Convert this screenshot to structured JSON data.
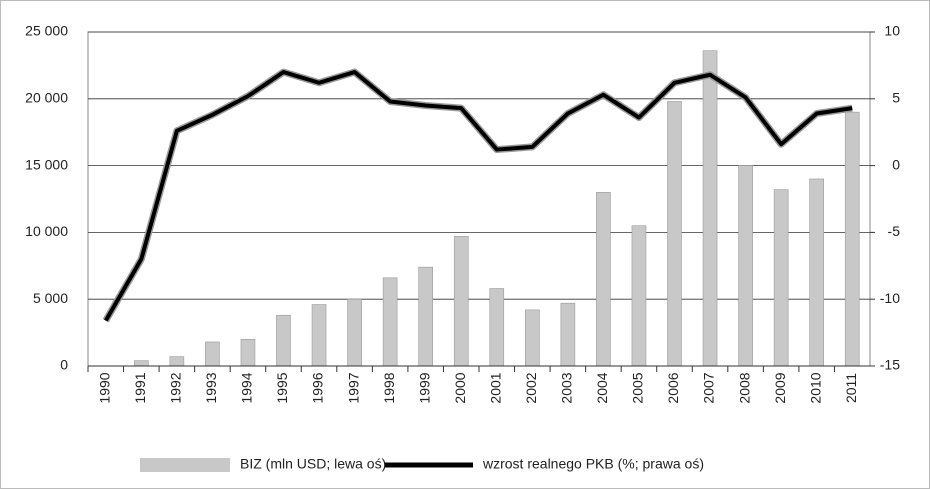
{
  "chart_data": {
    "type": "bar-line",
    "categories": [
      "1990",
      "1991",
      "1992",
      "1993",
      "1994",
      "1995",
      "1996",
      "1997",
      "1998",
      "1999",
      "2000",
      "2001",
      "2002",
      "2003",
      "2004",
      "2005",
      "2006",
      "2007",
      "2008",
      "2009",
      "2010",
      "2011"
    ],
    "series": [
      {
        "name": "BIZ (mln USD; lewa oś)",
        "type": "bar",
        "color": "#c8c8c8",
        "axis": "y",
        "values": [
          0,
          400,
          700,
          1800,
          2000,
          3800,
          4600,
          5000,
          6600,
          7400,
          9700,
          5800,
          4200,
          4700,
          13000,
          10500,
          19800,
          23600,
          15000,
          13200,
          14000,
          19000
        ]
      },
      {
        "name": "wzrost realnego PKB (%; prawa oś)",
        "type": "line",
        "color": "#000000",
        "axis": "y2",
        "values": [
          -11.6,
          -7,
          2.6,
          3.8,
          5.2,
          7,
          6.2,
          7,
          4.8,
          4.5,
          4.3,
          1.2,
          1.4,
          3.9,
          5.3,
          3.6,
          6.2,
          6.8,
          5.1,
          1.6,
          3.9,
          4.3
        ]
      }
    ],
    "ylim": [
      0,
      25000
    ],
    "yticks": [
      0,
      {
        "value": 5000,
        "label": "5 000"
      },
      {
        "value": 10000,
        "label": "10 000"
      },
      {
        "value": 15000,
        "label": "15 000"
      },
      {
        "value": 20000,
        "label": "20 000"
      },
      {
        "value": 25000,
        "label": "25 000"
      }
    ],
    "y2lim": [
      -15,
      10
    ],
    "y2ticks": [
      -15,
      -10,
      -5,
      0,
      5,
      10
    ],
    "grid": true,
    "legend": "bottom"
  }
}
